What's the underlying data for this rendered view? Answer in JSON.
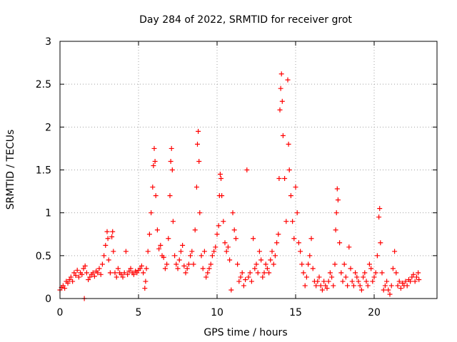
{
  "chart_data": {
    "type": "scatter",
    "title": "Day 284 of 2022, SRMTID for receiver grot",
    "xlabel": "GPS time / hours",
    "ylabel": "SRMTID / TECUs",
    "xlim": [
      0,
      24
    ],
    "ylim": [
      0,
      3
    ],
    "xticks": [
      0,
      5,
      10,
      15,
      20
    ],
    "xtick_labels": [
      "0",
      "5",
      "10",
      "15",
      "20"
    ],
    "yticks": [
      0,
      0.5,
      1,
      1.5,
      2,
      2.5,
      3
    ],
    "ytick_labels": [
      "0",
      "0.5",
      "1",
      "1.5",
      "2",
      "2.5",
      "3"
    ],
    "grid": true,
    "marker": "+",
    "color": "#ff0000",
    "series": [
      {
        "name": "SRMTID",
        "points": [
          [
            0.0,
            0.1
          ],
          [
            0.1,
            0.13
          ],
          [
            0.2,
            0.15
          ],
          [
            0.3,
            0.12
          ],
          [
            0.4,
            0.2
          ],
          [
            0.5,
            0.18
          ],
          [
            0.6,
            0.22
          ],
          [
            0.7,
            0.25
          ],
          [
            0.8,
            0.2
          ],
          [
            0.9,
            0.3
          ],
          [
            1.0,
            0.27
          ],
          [
            1.1,
            0.33
          ],
          [
            1.2,
            0.25
          ],
          [
            1.3,
            0.3
          ],
          [
            1.4,
            0.28
          ],
          [
            1.5,
            0.35
          ],
          [
            1.55,
            0.0
          ],
          [
            1.6,
            0.38
          ],
          [
            1.7,
            0.3
          ],
          [
            1.8,
            0.22
          ],
          [
            1.9,
            0.25
          ],
          [
            2.0,
            0.28
          ],
          [
            2.1,
            0.3
          ],
          [
            2.2,
            0.26
          ],
          [
            2.3,
            0.32
          ],
          [
            2.4,
            0.3
          ],
          [
            2.5,
            0.35
          ],
          [
            2.6,
            0.28
          ],
          [
            2.7,
            0.4
          ],
          [
            2.8,
            0.5
          ],
          [
            2.9,
            0.62
          ],
          [
            3.0,
            0.78
          ],
          [
            3.05,
            0.7
          ],
          [
            3.1,
            0.45
          ],
          [
            3.2,
            0.3
          ],
          [
            3.3,
            0.72
          ],
          [
            3.35,
            0.78
          ],
          [
            3.4,
            0.55
          ],
          [
            3.5,
            0.3
          ],
          [
            3.6,
            0.25
          ],
          [
            3.7,
            0.35
          ],
          [
            3.8,
            0.3
          ],
          [
            3.9,
            0.28
          ],
          [
            4.0,
            0.25
          ],
          [
            4.1,
            0.3
          ],
          [
            4.2,
            0.55
          ],
          [
            4.3,
            0.28
          ],
          [
            4.4,
            0.32
          ],
          [
            4.5,
            0.35
          ],
          [
            4.6,
            0.3
          ],
          [
            4.7,
            0.28
          ],
          [
            4.8,
            0.32
          ],
          [
            4.9,
            0.3
          ],
          [
            5.0,
            0.33
          ],
          [
            5.1,
            0.35
          ],
          [
            5.2,
            0.38
          ],
          [
            5.3,
            0.3
          ],
          [
            5.4,
            0.12
          ],
          [
            5.45,
            0.2
          ],
          [
            5.5,
            0.35
          ],
          [
            5.6,
            0.55
          ],
          [
            5.7,
            0.75
          ],
          [
            5.8,
            1.0
          ],
          [
            5.9,
            1.3
          ],
          [
            5.95,
            1.55
          ],
          [
            6.0,
            1.75
          ],
          [
            6.05,
            1.6
          ],
          [
            6.1,
            1.2
          ],
          [
            6.2,
            0.8
          ],
          [
            6.3,
            0.58
          ],
          [
            6.4,
            0.62
          ],
          [
            6.5,
            0.5
          ],
          [
            6.6,
            0.48
          ],
          [
            6.7,
            0.35
          ],
          [
            6.8,
            0.4
          ],
          [
            6.9,
            0.7
          ],
          [
            7.0,
            1.2
          ],
          [
            7.05,
            1.6
          ],
          [
            7.1,
            1.75
          ],
          [
            7.15,
            1.5
          ],
          [
            7.2,
            0.9
          ],
          [
            7.3,
            0.5
          ],
          [
            7.4,
            0.4
          ],
          [
            7.5,
            0.35
          ],
          [
            7.6,
            0.45
          ],
          [
            7.7,
            0.55
          ],
          [
            7.8,
            0.62
          ],
          [
            7.9,
            0.38
          ],
          [
            8.0,
            0.3
          ],
          [
            8.1,
            0.35
          ],
          [
            8.2,
            0.4
          ],
          [
            8.3,
            0.5
          ],
          [
            8.4,
            0.55
          ],
          [
            8.5,
            0.4
          ],
          [
            8.6,
            0.8
          ],
          [
            8.7,
            1.3
          ],
          [
            8.75,
            1.8
          ],
          [
            8.8,
            1.95
          ],
          [
            8.85,
            1.6
          ],
          [
            8.9,
            1.0
          ],
          [
            9.0,
            0.5
          ],
          [
            9.1,
            0.35
          ],
          [
            9.2,
            0.55
          ],
          [
            9.3,
            0.25
          ],
          [
            9.4,
            0.3
          ],
          [
            9.5,
            0.35
          ],
          [
            9.6,
            0.4
          ],
          [
            9.7,
            0.5
          ],
          [
            9.8,
            0.55
          ],
          [
            9.9,
            0.6
          ],
          [
            10.0,
            0.75
          ],
          [
            10.1,
            0.85
          ],
          [
            10.15,
            1.2
          ],
          [
            10.2,
            1.45
          ],
          [
            10.25,
            1.4
          ],
          [
            10.3,
            1.2
          ],
          [
            10.4,
            0.9
          ],
          [
            10.5,
            0.65
          ],
          [
            10.6,
            0.55
          ],
          [
            10.7,
            0.6
          ],
          [
            10.8,
            0.45
          ],
          [
            10.9,
            0.1
          ],
          [
            11.0,
            1.0
          ],
          [
            11.1,
            0.8
          ],
          [
            11.2,
            0.7
          ],
          [
            11.3,
            0.4
          ],
          [
            11.4,
            0.2
          ],
          [
            11.5,
            0.25
          ],
          [
            11.6,
            0.3
          ],
          [
            11.7,
            0.15
          ],
          [
            11.8,
            0.22
          ],
          [
            11.9,
            1.5
          ],
          [
            12.0,
            0.25
          ],
          [
            12.1,
            0.3
          ],
          [
            12.2,
            0.2
          ],
          [
            12.3,
            0.7
          ],
          [
            12.4,
            0.35
          ],
          [
            12.5,
            0.4
          ],
          [
            12.6,
            0.3
          ],
          [
            12.7,
            0.55
          ],
          [
            12.8,
            0.45
          ],
          [
            12.9,
            0.25
          ],
          [
            13.0,
            0.3
          ],
          [
            13.1,
            0.4
          ],
          [
            13.2,
            0.35
          ],
          [
            13.3,
            0.3
          ],
          [
            13.4,
            0.45
          ],
          [
            13.5,
            0.55
          ],
          [
            13.6,
            0.4
          ],
          [
            13.7,
            0.5
          ],
          [
            13.8,
            0.65
          ],
          [
            13.9,
            0.75
          ],
          [
            13.95,
            1.4
          ],
          [
            14.0,
            2.2
          ],
          [
            14.05,
            2.45
          ],
          [
            14.1,
            2.62
          ],
          [
            14.15,
            2.3
          ],
          [
            14.2,
            1.9
          ],
          [
            14.3,
            1.4
          ],
          [
            14.4,
            0.9
          ],
          [
            14.5,
            2.55
          ],
          [
            14.55,
            1.8
          ],
          [
            14.6,
            1.5
          ],
          [
            14.7,
            1.2
          ],
          [
            14.8,
            0.9
          ],
          [
            14.9,
            0.7
          ],
          [
            15.0,
            1.3
          ],
          [
            15.1,
            1.0
          ],
          [
            15.2,
            0.65
          ],
          [
            15.3,
            0.55
          ],
          [
            15.4,
            0.4
          ],
          [
            15.5,
            0.3
          ],
          [
            15.6,
            0.15
          ],
          [
            15.7,
            0.25
          ],
          [
            15.8,
            0.4
          ],
          [
            15.9,
            0.5
          ],
          [
            16.0,
            0.7
          ],
          [
            16.1,
            0.35
          ],
          [
            16.2,
            0.2
          ],
          [
            16.3,
            0.15
          ],
          [
            16.4,
            0.2
          ],
          [
            16.5,
            0.25
          ],
          [
            16.6,
            0.15
          ],
          [
            16.7,
            0.1
          ],
          [
            16.8,
            0.2
          ],
          [
            16.9,
            0.15
          ],
          [
            17.0,
            0.12
          ],
          [
            17.1,
            0.2
          ],
          [
            17.2,
            0.3
          ],
          [
            17.3,
            0.25
          ],
          [
            17.4,
            0.15
          ],
          [
            17.5,
            0.4
          ],
          [
            17.55,
            0.8
          ],
          [
            17.6,
            1.0
          ],
          [
            17.65,
            1.28
          ],
          [
            17.7,
            1.15
          ],
          [
            17.8,
            0.65
          ],
          [
            17.9,
            0.3
          ],
          [
            18.0,
            0.2
          ],
          [
            18.1,
            0.4
          ],
          [
            18.2,
            0.25
          ],
          [
            18.3,
            0.15
          ],
          [
            18.4,
            0.6
          ],
          [
            18.5,
            0.35
          ],
          [
            18.6,
            0.2
          ],
          [
            18.7,
            0.15
          ],
          [
            18.8,
            0.3
          ],
          [
            18.9,
            0.25
          ],
          [
            19.0,
            0.2
          ],
          [
            19.1,
            0.15
          ],
          [
            19.2,
            0.1
          ],
          [
            19.3,
            0.25
          ],
          [
            19.4,
            0.3
          ],
          [
            19.5,
            0.2
          ],
          [
            19.6,
            0.15
          ],
          [
            19.7,
            0.4
          ],
          [
            19.8,
            0.35
          ],
          [
            19.9,
            0.2
          ],
          [
            20.0,
            0.25
          ],
          [
            20.1,
            0.3
          ],
          [
            20.2,
            0.5
          ],
          [
            20.3,
            0.95
          ],
          [
            20.35,
            1.05
          ],
          [
            20.4,
            0.65
          ],
          [
            20.5,
            0.3
          ],
          [
            20.6,
            0.1
          ],
          [
            20.7,
            0.15
          ],
          [
            20.8,
            0.2
          ],
          [
            20.9,
            0.1
          ],
          [
            21.0,
            0.05
          ],
          [
            21.1,
            0.15
          ],
          [
            21.2,
            0.35
          ],
          [
            21.3,
            0.55
          ],
          [
            21.4,
            0.3
          ],
          [
            21.5,
            0.15
          ],
          [
            21.6,
            0.2
          ],
          [
            21.7,
            0.12
          ],
          [
            21.8,
            0.18
          ],
          [
            21.9,
            0.15
          ],
          [
            22.0,
            0.2
          ],
          [
            22.1,
            0.15
          ],
          [
            22.2,
            0.22
          ],
          [
            22.3,
            0.2
          ],
          [
            22.4,
            0.25
          ],
          [
            22.5,
            0.28
          ],
          [
            22.6,
            0.2
          ],
          [
            22.7,
            0.25
          ],
          [
            22.8,
            0.3
          ],
          [
            22.85,
            0.22
          ]
        ]
      }
    ]
  }
}
